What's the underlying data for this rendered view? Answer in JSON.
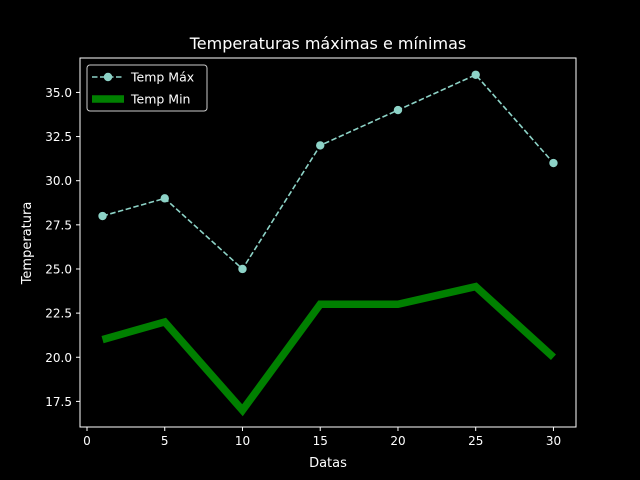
{
  "chart_data": {
    "type": "line",
    "title": "Temperaturas máximas e mínimas",
    "xlabel": "Datas",
    "ylabel": "Temperatura",
    "xlim": [
      -0.45,
      31.45
    ],
    "ylim": [
      16.05,
      36.95
    ],
    "x_ticks": [
      0,
      5,
      10,
      15,
      20,
      25,
      30
    ],
    "y_ticks": [
      17.5,
      20.0,
      22.5,
      25.0,
      27.5,
      30.0,
      32.5,
      35.0
    ],
    "x_tick_labels": [
      "0",
      "5",
      "10",
      "15",
      "20",
      "25",
      "30"
    ],
    "y_tick_labels": [
      "17.5",
      "20.0",
      "22.5",
      "25.0",
      "27.5",
      "30.0",
      "32.5",
      "35.0"
    ],
    "x": [
      1,
      5,
      10,
      15,
      20,
      25,
      30
    ],
    "series": [
      {
        "name": "Temp Máx",
        "values": [
          28,
          29,
          25,
          32,
          34,
          36,
          31
        ],
        "color": "#8dd3c7",
        "style": "dashed",
        "marker": "circle"
      },
      {
        "name": "Temp Min",
        "values": [
          21,
          22,
          17,
          23,
          23,
          24,
          20
        ],
        "color": "#008000",
        "style": "solid-thick",
        "marker": "none"
      }
    ],
    "grid": false,
    "legend_position": "upper-left",
    "colors": {
      "background": "#000000",
      "foreground": "#ffffff"
    }
  }
}
